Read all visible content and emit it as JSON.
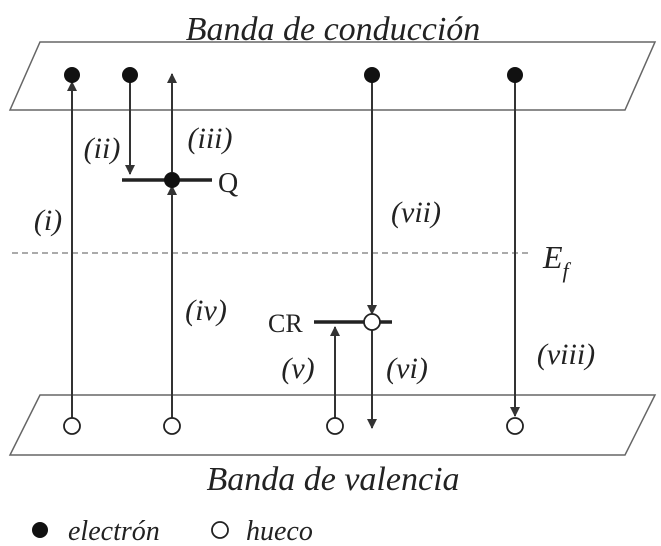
{
  "title_top": "Banda de conducción",
  "title_bottom": "Banda de valencia",
  "fermi": {
    "main": "E",
    "sub": "f"
  },
  "levels": {
    "q": "Q",
    "cr": "CR"
  },
  "transitions": [
    "(i)",
    "(ii)",
    "(iii)",
    "(iv)",
    "(v)",
    "(vi)",
    "(vii)",
    "(viii)"
  ],
  "legend": {
    "electron": "electrón",
    "hole": "hueco"
  }
}
